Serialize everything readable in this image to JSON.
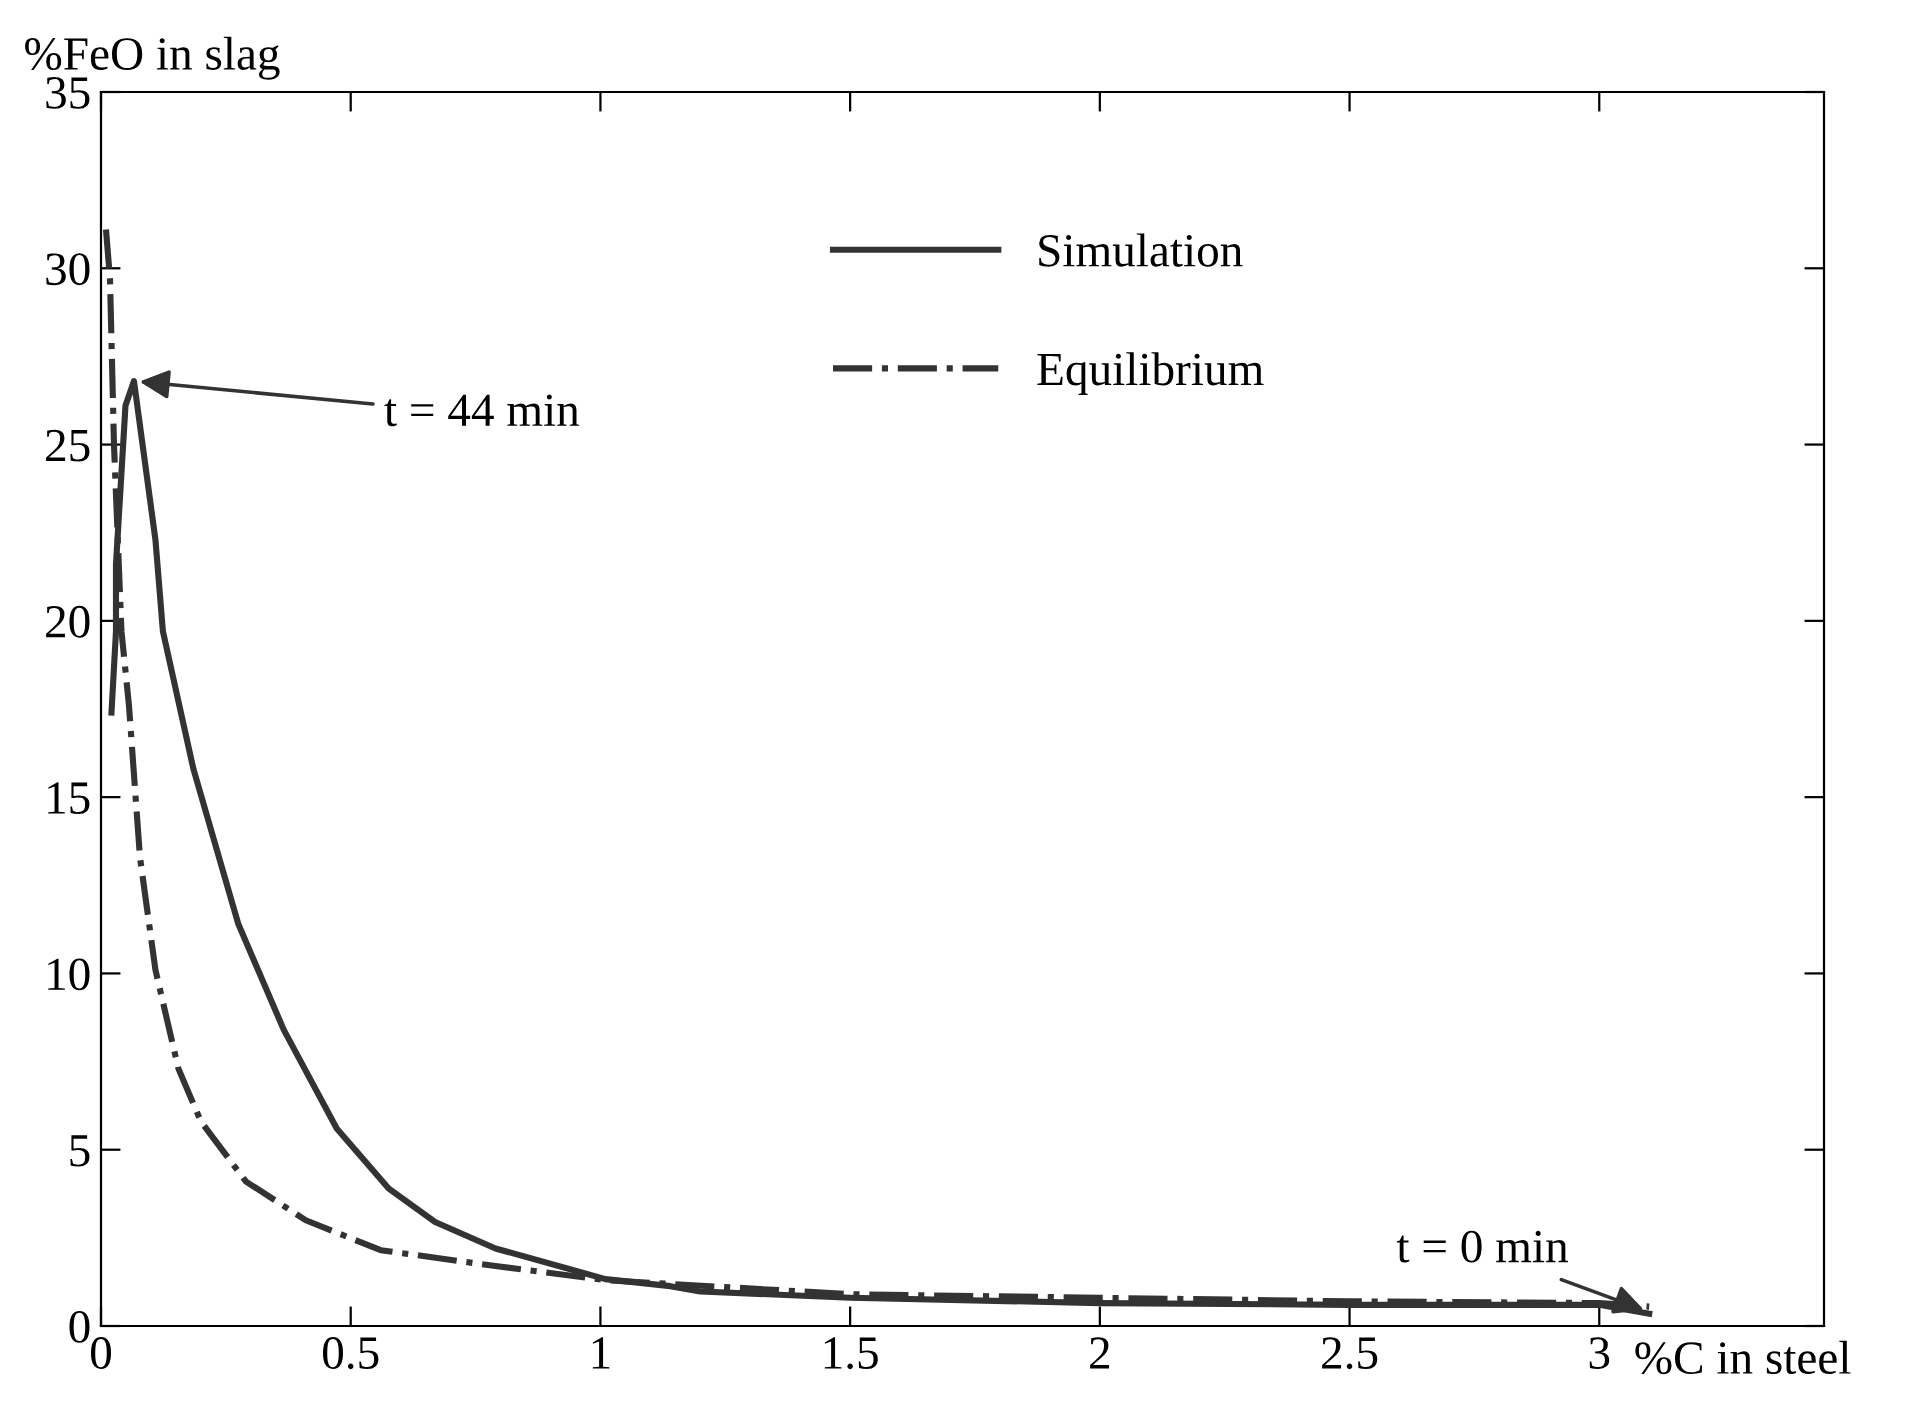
{
  "chart_data": {
    "type": "line",
    "xlabel": "%C in steel",
    "ylabel": "%FeO in slag",
    "xlim": [
      0,
      3.45
    ],
    "ylim": [
      0,
      35
    ],
    "xticks": [
      0,
      0.5,
      1,
      1.5,
      2,
      2.5,
      3
    ],
    "yticks": [
      0,
      5,
      10,
      15,
      20,
      25,
      30,
      35
    ],
    "grid": false,
    "legend": "top",
    "marker": "none",
    "series": [
      {
        "name": "Simulation",
        "color": "#333333",
        "line_style": "solid",
        "x": [
          0.021,
          0.03,
          0.03,
          0.049,
          0.066,
          0.109,
          0.124,
          0.185,
          0.275,
          0.366,
          0.472,
          0.576,
          0.669,
          0.79,
          1.01,
          1.14,
          1.2,
          1.5,
          2.0,
          2.5,
          3.0,
          3.1
        ],
        "values": [
          17.4,
          19.7,
          21.6,
          26.1,
          26.8,
          22.3,
          19.7,
          15.8,
          11.4,
          8.4,
          5.6,
          3.9,
          2.95,
          2.2,
          1.33,
          1.13,
          0.98,
          0.8,
          0.65,
          0.6,
          0.6,
          0.35
        ]
      },
      {
        "name": "Equilibrium",
        "color": "#333333",
        "line_style": "dashdot",
        "x": [
          0.01,
          0.018,
          0.026,
          0.041,
          0.056,
          0.078,
          0.109,
          0.155,
          0.2,
          0.29,
          0.41,
          0.56,
          0.79,
          1.01,
          1.5,
          2.0,
          2.5,
          3.0,
          3.1
        ],
        "values": [
          31.1,
          29.7,
          25,
          19.7,
          17.6,
          13.3,
          10.1,
          7.3,
          5.8,
          4.1,
          3.0,
          2.15,
          1.7,
          1.3,
          0.9,
          0.8,
          0.7,
          0.65,
          0.55
        ]
      }
    ],
    "annotations": [
      {
        "text": "t = 44 min",
        "x": 0.066,
        "y": 26.8
      },
      {
        "text": "t = 0 min",
        "x": 3.1,
        "y": 0.4
      }
    ]
  }
}
